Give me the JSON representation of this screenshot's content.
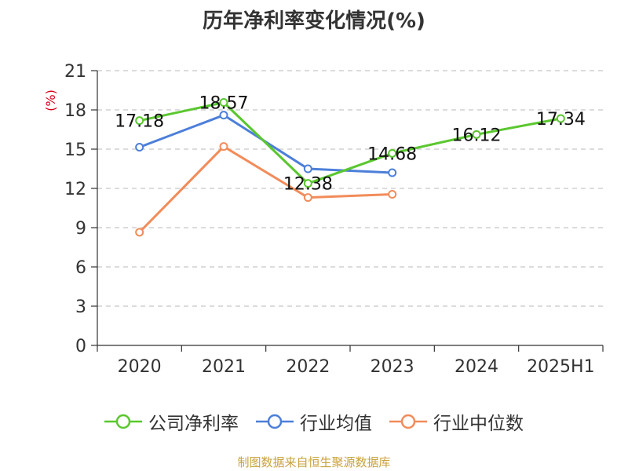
{
  "chart_data": {
    "type": "line",
    "title": "历年净利率变化情况(%)",
    "unit_label": "(%)",
    "categories": [
      "2020",
      "2021",
      "2022",
      "2023",
      "2024",
      "2025H1"
    ],
    "ylim": [
      0,
      21
    ],
    "yticks": [
      0,
      3,
      6,
      9,
      12,
      15,
      18,
      21
    ],
    "grid": true,
    "legend_position": "bottom",
    "series": [
      {
        "name": "公司净利率",
        "color": "#5ac72f",
        "values": [
          17.18,
          18.57,
          12.38,
          14.68,
          16.12,
          17.34
        ],
        "labels": [
          "17.18",
          "18.57",
          "12.38",
          "14.68",
          "16.12",
          "17.34"
        ]
      },
      {
        "name": "行业均值",
        "color": "#4c7fd9",
        "values": [
          15.15,
          17.6,
          13.5,
          13.2,
          null,
          null
        ]
      },
      {
        "name": "行业中位数",
        "color": "#f28c5a",
        "values": [
          8.65,
          15.2,
          11.3,
          11.55,
          null,
          null
        ]
      }
    ]
  },
  "source": "制图数据来自恒生聚源数据库"
}
